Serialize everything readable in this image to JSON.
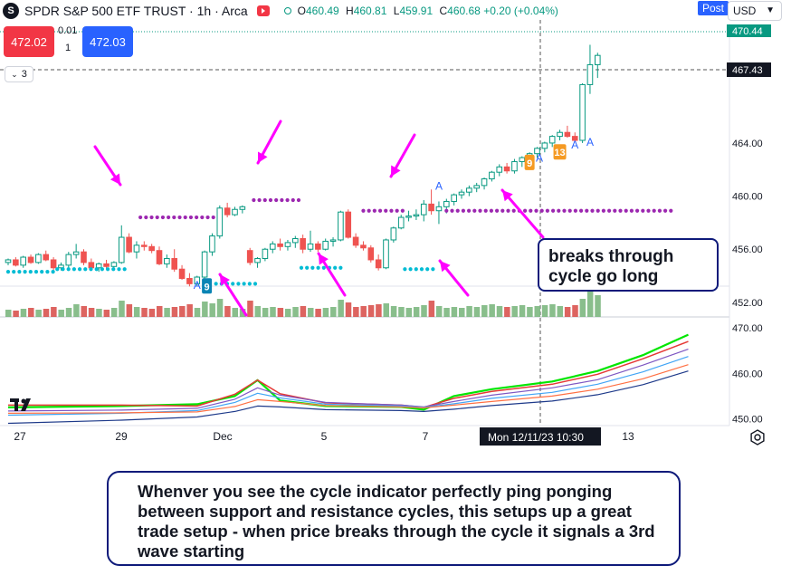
{
  "header": {
    "symbol_logo": "S",
    "title": "SPDR S&P 500 ETF TRUST · 1h · Arca",
    "ohlc": {
      "open_label": "O",
      "open": "460.49",
      "high_label": "H",
      "high": "460.81",
      "low_label": "L",
      "low": "459.91",
      "close_label": "C",
      "close": "460.68",
      "change": "+0.20 (+0.04%)"
    },
    "post_badge": "Post",
    "currency": "USD"
  },
  "trade_panel": {
    "sell_price": "472.02",
    "buy_price": "472.03",
    "spread_top": "0.01",
    "spread_bottom": "1"
  },
  "collapse_button": {
    "label": "3"
  },
  "callout_text": "breaks through cycle go long",
  "note_text": "Whenver you see the cycle indicator perfectly ping ponging between support and resistance cycles, this setups up a great trade setup - when price breaks through the cycle it signals a 3rd wave starting",
  "colors": {
    "up": "#089981",
    "down": "#ef5350",
    "resistance_dots": "#9c27b0",
    "support_dots": "#00bcd4",
    "arrows": "#ff00ff",
    "box_border": "#0e1a7a"
  },
  "chart_data": {
    "type": "candlestick",
    "price_axis": {
      "range": [
        450.9,
        473.0
      ],
      "ticks": [
        "464.00",
        "460.00",
        "456.00",
        "452.00"
      ],
      "last_price_label": "470.44",
      "crosshair_price_label": "467.43"
    },
    "lower_axis": {
      "range": [
        448.5,
        472.0
      ],
      "ticks": [
        "470.00",
        "460.00",
        "450.00"
      ]
    },
    "x_axis": {
      "ticks": [
        "27",
        "29",
        "Dec",
        "5",
        "7",
        "13"
      ],
      "crosshair_label": "Mon 12/11/23  10:30"
    },
    "candles": [
      [
        455.0,
        455.3,
        454.8,
        455.2
      ],
      [
        455.2,
        455.4,
        454.7,
        454.8
      ],
      [
        454.8,
        455.5,
        454.6,
        455.4
      ],
      [
        455.4,
        455.6,
        454.9,
        455.0
      ],
      [
        455.0,
        455.7,
        454.9,
        455.6
      ],
      [
        455.6,
        455.9,
        455.1,
        455.2
      ],
      [
        455.2,
        455.4,
        454.3,
        454.6
      ],
      [
        454.6,
        455.0,
        454.4,
        454.8
      ],
      [
        454.8,
        455.8,
        454.6,
        455.6
      ],
      [
        455.6,
        456.4,
        455.3,
        455.8
      ],
      [
        455.8,
        456.0,
        454.8,
        455.0
      ],
      [
        455.0,
        455.3,
        454.4,
        454.6
      ],
      [
        454.6,
        455.0,
        454.3,
        454.9
      ],
      [
        454.9,
        455.2,
        454.5,
        454.7
      ],
      [
        454.7,
        455.1,
        454.5,
        455.0
      ],
      [
        455.0,
        457.8,
        454.9,
        456.9
      ],
      [
        456.9,
        457.2,
        455.7,
        455.8
      ],
      [
        455.8,
        456.6,
        455.3,
        456.3
      ],
      [
        456.3,
        456.6,
        455.9,
        456.2
      ],
      [
        456.2,
        456.4,
        455.7,
        455.9
      ],
      [
        455.9,
        456.2,
        454.8,
        454.9
      ],
      [
        454.9,
        455.6,
        454.6,
        455.3
      ],
      [
        455.3,
        456.0,
        454.3,
        454.5
      ],
      [
        454.5,
        454.8,
        453.7,
        453.8
      ],
      [
        453.8,
        454.2,
        453.2,
        453.4
      ],
      [
        453.4,
        454.0,
        453.2,
        453.9
      ],
      [
        453.9,
        455.9,
        453.8,
        455.8
      ],
      [
        455.8,
        457.2,
        455.5,
        457.0
      ],
      [
        457.0,
        459.3,
        456.8,
        459.1
      ],
      [
        459.1,
        459.5,
        458.4,
        458.6
      ],
      [
        458.6,
        459.2,
        458.5,
        459.0
      ],
      [
        459.0,
        459.3,
        458.7,
        459.2
      ],
      [
        455.9,
        456.1,
        454.8,
        455.0
      ],
      [
        455.0,
        455.4,
        454.6,
        455.3
      ],
      [
        455.3,
        456.1,
        455.1,
        456.0
      ],
      [
        456.0,
        456.6,
        455.7,
        456.4
      ],
      [
        456.4,
        456.8,
        455.9,
        456.2
      ],
      [
        456.2,
        456.7,
        455.9,
        456.5
      ],
      [
        456.5,
        457.0,
        456.1,
        456.8
      ],
      [
        456.8,
        457.1,
        455.7,
        456.0
      ],
      [
        456.0,
        457.4,
        455.8,
        456.4
      ],
      [
        456.4,
        456.6,
        455.8,
        456.0
      ],
      [
        456.0,
        456.8,
        455.9,
        456.6
      ],
      [
        456.6,
        456.9,
        456.2,
        456.7
      ],
      [
        456.7,
        458.9,
        456.6,
        458.8
      ],
      [
        458.8,
        459.0,
        456.8,
        456.9
      ],
      [
        456.9,
        457.2,
        456.1,
        456.3
      ],
      [
        456.3,
        456.6,
        455.9,
        456.1
      ],
      [
        456.1,
        456.3,
        455.0,
        455.2
      ],
      [
        455.2,
        455.6,
        454.4,
        454.6
      ],
      [
        454.6,
        456.8,
        454.5,
        456.7
      ],
      [
        456.7,
        457.7,
        456.5,
        457.6
      ],
      [
        457.6,
        458.6,
        457.5,
        458.4
      ],
      [
        458.4,
        458.9,
        458.1,
        458.5
      ],
      [
        458.5,
        459.0,
        458.2,
        458.6
      ],
      [
        458.6,
        459.7,
        458.1,
        459.4
      ],
      [
        459.4,
        460.5,
        458.6,
        458.9
      ],
      [
        458.9,
        459.6,
        457.9,
        459.2
      ],
      [
        459.2,
        459.8,
        458.7,
        459.6
      ],
      [
        459.6,
        460.2,
        459.3,
        460.1
      ],
      [
        460.1,
        460.5,
        459.8,
        460.3
      ],
      [
        460.3,
        460.8,
        460.0,
        460.6
      ],
      [
        460.6,
        461.0,
        460.3,
        460.8
      ],
      [
        460.8,
        461.4,
        460.5,
        461.3
      ],
      [
        461.3,
        461.9,
        461.1,
        461.8
      ],
      [
        461.8,
        462.4,
        461.5,
        462.2
      ],
      [
        462.2,
        462.5,
        461.7,
        461.9
      ],
      [
        461.9,
        462.8,
        461.7,
        462.6
      ],
      [
        462.6,
        463.0,
        462.2,
        462.9
      ],
      [
        462.9,
        463.3,
        462.6,
        463.2
      ],
      [
        463.2,
        463.7,
        462.9,
        463.6
      ],
      [
        463.6,
        464.1,
        463.3,
        464.0
      ],
      [
        464.0,
        464.6,
        463.7,
        464.5
      ],
      [
        464.5,
        465.0,
        464.2,
        464.8
      ],
      [
        464.8,
        465.3,
        464.4,
        464.5
      ],
      [
        464.5,
        464.8,
        464.1,
        464.2
      ],
      [
        464.2,
        468.5,
        464.0,
        468.4
      ],
      [
        468.4,
        471.4,
        467.7,
        469.9
      ],
      [
        469.9,
        470.8,
        468.9,
        470.6
      ]
    ],
    "volume_ratio": [
      0.4,
      0.35,
      0.45,
      0.5,
      0.4,
      0.45,
      0.55,
      0.4,
      0.5,
      0.7,
      0.6,
      0.5,
      0.45,
      0.4,
      0.5,
      0.9,
      0.7,
      0.55,
      0.5,
      0.45,
      0.6,
      0.5,
      0.55,
      0.6,
      0.7,
      0.5,
      0.85,
      0.75,
      1.0,
      0.6,
      0.5,
      0.45,
      0.9,
      0.6,
      0.5,
      0.55,
      0.5,
      0.45,
      0.55,
      0.6,
      0.5,
      0.45,
      0.5,
      0.55,
      0.95,
      0.8,
      0.55,
      0.6,
      0.65,
      0.7,
      0.75,
      0.6,
      0.55,
      0.5,
      0.55,
      0.65,
      0.9,
      0.6,
      0.5,
      0.55,
      0.5,
      0.6,
      0.55,
      0.65,
      0.7,
      0.6,
      0.55,
      0.6,
      0.65,
      0.55,
      0.6,
      0.65,
      0.7,
      0.6,
      0.55,
      0.65,
      1.0,
      1.45,
      1.2
    ],
    "cycle_levels": [
      {
        "type": "resistance",
        "from": 17.5,
        "to": 27.5,
        "value": 458.4
      },
      {
        "type": "support",
        "from": 0,
        "to": 6.0,
        "value": 454.3
      },
      {
        "type": "support",
        "from": 6.5,
        "to": 16.0,
        "value": 454.5
      },
      {
        "type": "support",
        "from": 27.5,
        "to": 33.0,
        "value": 453.4
      },
      {
        "type": "resistance",
        "from": 32.5,
        "to": 38.5,
        "value": 459.7
      },
      {
        "type": "support",
        "from": 38.8,
        "to": 44.0,
        "value": 454.6
      },
      {
        "type": "resistance",
        "from": 47.0,
        "to": 52.5,
        "value": 458.9
      },
      {
        "type": "support",
        "from": 52.5,
        "to": 56.5,
        "value": 454.5
      },
      {
        "type": "resistance",
        "from": 58.0,
        "to": 88.0,
        "value": 458.9
      }
    ],
    "markers": [
      {
        "label": "A",
        "kind": "text",
        "idx": 25,
        "value": 453.0
      },
      {
        "label": "9",
        "kind": "box",
        "idx": 26.3,
        "value": 453.2,
        "color": "#0a84b4"
      },
      {
        "label": "A",
        "kind": "text",
        "idx": 57.0,
        "value": 460.5
      },
      {
        "label": "9",
        "kind": "box",
        "idx": 69.0,
        "value": 462.5,
        "color": "#f59a23"
      },
      {
        "label": "A",
        "kind": "text",
        "idx": 70.3,
        "value": 462.6
      },
      {
        "label": "13",
        "kind": "box",
        "idx": 73.0,
        "value": 463.3,
        "color": "#f59a23"
      },
      {
        "label": "A",
        "kind": "text",
        "idx": 75.0,
        "value": 463.6
      },
      {
        "label": "A",
        "kind": "text",
        "idx": 77.0,
        "value": 463.8
      }
    ],
    "ma_lines": [
      {
        "color": "#00e600",
        "width": 2.2,
        "values": [
          [
            0,
            452.5
          ],
          [
            15,
            452.8
          ],
          [
            25,
            453.2
          ],
          [
            30,
            455.0
          ],
          [
            33,
            458.5
          ],
          [
            36,
            454.0
          ],
          [
            42,
            452.8
          ],
          [
            52,
            452.6
          ],
          [
            55,
            452.0
          ],
          [
            59,
            455.0
          ],
          [
            64,
            456.5
          ],
          [
            72,
            458.2
          ],
          [
            78,
            460.5
          ],
          [
            84,
            464.0
          ],
          [
            90,
            468.5
          ]
        ]
      },
      {
        "color": "#e53935",
        "width": 1.5,
        "values": [
          [
            0,
            453.0
          ],
          [
            15,
            453.0
          ],
          [
            25,
            452.8
          ],
          [
            30,
            455.4
          ],
          [
            33,
            458.5
          ],
          [
            36,
            455.5
          ],
          [
            42,
            453.5
          ],
          [
            52,
            453.0
          ],
          [
            55,
            452.5
          ],
          [
            59,
            454.5
          ],
          [
            64,
            456.0
          ],
          [
            72,
            457.6
          ],
          [
            78,
            459.8
          ],
          [
            84,
            463.2
          ],
          [
            90,
            467.0
          ]
        ]
      },
      {
        "color": "#7e57c2",
        "width": 1.2,
        "values": [
          [
            0,
            451.7
          ],
          [
            15,
            451.9
          ],
          [
            25,
            452.3
          ],
          [
            30,
            454.3
          ],
          [
            33,
            456.8
          ],
          [
            36,
            455.2
          ],
          [
            42,
            453.6
          ],
          [
            52,
            453.0
          ],
          [
            55,
            452.6
          ],
          [
            59,
            453.8
          ],
          [
            64,
            455.2
          ],
          [
            72,
            456.8
          ],
          [
            78,
            458.6
          ],
          [
            84,
            461.8
          ],
          [
            90,
            465.3
          ]
        ]
      },
      {
        "color": "#42a5f5",
        "width": 1.2,
        "values": [
          [
            0,
            450.8
          ],
          [
            15,
            451.2
          ],
          [
            25,
            451.8
          ],
          [
            30,
            453.6
          ],
          [
            33,
            455.6
          ],
          [
            36,
            454.6
          ],
          [
            42,
            453.2
          ],
          [
            52,
            452.8
          ],
          [
            55,
            452.5
          ],
          [
            59,
            453.3
          ],
          [
            64,
            454.5
          ],
          [
            72,
            455.8
          ],
          [
            78,
            457.6
          ],
          [
            84,
            460.3
          ],
          [
            90,
            463.7
          ]
        ]
      },
      {
        "color": "#ff7043",
        "width": 1.2,
        "values": [
          [
            0,
            451.2
          ],
          [
            15,
            451.3
          ],
          [
            25,
            451.5
          ],
          [
            30,
            452.7
          ],
          [
            33,
            454.2
          ],
          [
            36,
            453.8
          ],
          [
            42,
            452.9
          ],
          [
            52,
            452.6
          ],
          [
            55,
            452.4
          ],
          [
            59,
            453.0
          ],
          [
            64,
            453.8
          ],
          [
            72,
            455.0
          ],
          [
            78,
            456.5
          ],
          [
            84,
            458.8
          ],
          [
            90,
            461.9
          ]
        ]
      },
      {
        "color": "#1e3a8a",
        "width": 1.2,
        "values": [
          [
            0,
            449.0
          ],
          [
            15,
            449.7
          ],
          [
            25,
            450.4
          ],
          [
            30,
            451.6
          ],
          [
            33,
            452.8
          ],
          [
            36,
            452.6
          ],
          [
            42,
            452.0
          ],
          [
            52,
            451.8
          ],
          [
            55,
            451.6
          ],
          [
            59,
            452.1
          ],
          [
            64,
            452.9
          ],
          [
            72,
            453.9
          ],
          [
            78,
            455.3
          ],
          [
            84,
            457.5
          ],
          [
            90,
            460.5
          ]
        ]
      }
    ]
  }
}
